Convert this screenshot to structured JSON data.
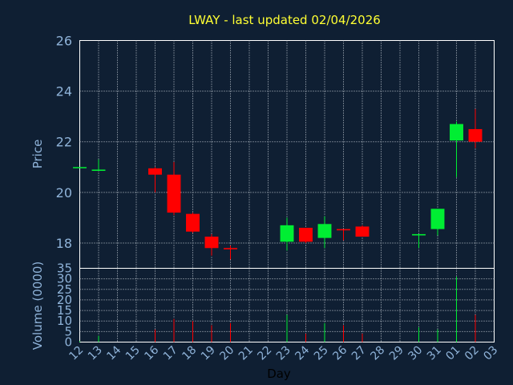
{
  "chart_data": {
    "type": "candlestick",
    "title": "LWAY - last updated 02/04/2026",
    "price_label": "Price",
    "volume_label": "Volume (0000)",
    "xlabel": "Day",
    "price_ylim": [
      17,
      26
    ],
    "price_ticks": [
      "18",
      "20",
      "22",
      "24",
      "26"
    ],
    "volume_ylim": [
      0,
      35
    ],
    "volume_ticks": [
      "0",
      "5",
      "10",
      "15",
      "20",
      "25",
      "30",
      "35"
    ],
    "x_ticks": [
      "12",
      "13",
      "14",
      "15",
      "16",
      "17",
      "18",
      "19",
      "20",
      "21",
      "22",
      "23",
      "24",
      "25",
      "26",
      "27",
      "28",
      "29",
      "30",
      "31",
      "01",
      "02",
      "03"
    ],
    "up_color": "#00ee33",
    "down_color": "#ff0000",
    "candles": [
      {
        "day": "12",
        "open": 21.0,
        "high": 21.0,
        "low": 21.0,
        "close": 21.0,
        "volume": 0.5
      },
      {
        "day": "13",
        "open": 20.85,
        "high": 21.3,
        "low": 20.85,
        "close": 20.9,
        "volume": 3
      },
      {
        "day": "16",
        "open": 20.95,
        "high": 21.0,
        "low": 20.0,
        "close": 20.7,
        "volume": 6
      },
      {
        "day": "17",
        "open": 20.7,
        "high": 21.2,
        "low": 19.1,
        "close": 19.2,
        "volume": 11
      },
      {
        "day": "18",
        "open": 19.15,
        "high": 19.2,
        "low": 18.4,
        "close": 18.45,
        "volume": 10
      },
      {
        "day": "19",
        "open": 18.25,
        "high": 18.35,
        "low": 17.5,
        "close": 17.8,
        "volume": 8
      },
      {
        "day": "20",
        "open": 17.8,
        "high": 17.9,
        "low": 17.35,
        "close": 17.75,
        "volume": 9
      },
      {
        "day": "23",
        "open": 18.05,
        "high": 19.0,
        "low": 17.7,
        "close": 18.7,
        "volume": 13
      },
      {
        "day": "24",
        "open": 18.6,
        "high": 18.6,
        "low": 18.0,
        "close": 18.05,
        "volume": 4
      },
      {
        "day": "25",
        "open": 18.2,
        "high": 19.05,
        "low": 17.8,
        "close": 18.75,
        "volume": 9
      },
      {
        "day": "26",
        "open": 18.55,
        "high": 18.55,
        "low": 18.1,
        "close": 18.5,
        "volume": 8
      },
      {
        "day": "27",
        "open": 18.65,
        "high": 18.7,
        "low": 18.25,
        "close": 18.25,
        "volume": 4
      },
      {
        "day": "30",
        "open": 18.3,
        "high": 18.35,
        "low": 17.8,
        "close": 18.35,
        "volume": 7
      },
      {
        "day": "31",
        "open": 18.55,
        "high": 19.35,
        "low": 18.3,
        "close": 19.35,
        "volume": 6
      },
      {
        "day": "01",
        "open": 22.05,
        "high": 22.8,
        "low": 20.6,
        "close": 22.7,
        "volume": 31
      },
      {
        "day": "02",
        "open": 22.5,
        "high": 23.3,
        "low": 21.75,
        "close": 22.0,
        "volume": 13
      }
    ]
  }
}
